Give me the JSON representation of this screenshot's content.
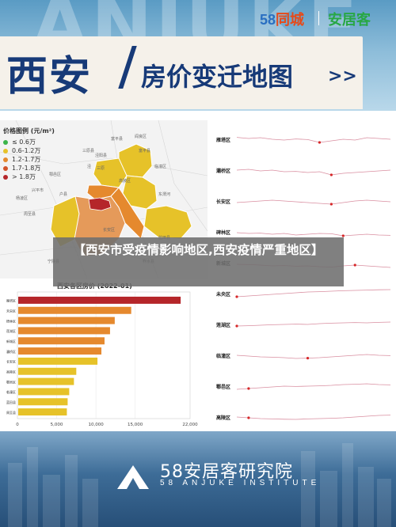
{
  "banner": {
    "background_letters": "ANJUKE",
    "logo_58_num": "58",
    "logo_58_name": "同城",
    "logo_anjuke": "安居客",
    "title_city": "西安",
    "title_sub": "房价变迁地图",
    "arrows": ">>"
  },
  "legend": {
    "title": "价格图例 (元/m²)",
    "items": [
      {
        "label": "≤ 0.6万",
        "color": "#3bb44a"
      },
      {
        "label": "0.6-1.2万",
        "color": "#e6c229"
      },
      {
        "label": "1.2-1.7万",
        "color": "#e5892e"
      },
      {
        "label": "1.7-1.8万",
        "color": "#d2542a"
      },
      {
        "label": "> 1.8万",
        "color": "#b5262a"
      }
    ]
  },
  "map_labels": [
    "富平县",
    "三原县",
    "泾阳县",
    "高陵区",
    "临潼区",
    "阎良区",
    "长安区",
    "鄠邑区",
    "周至县",
    "蓝田县",
    "兴平市",
    "户县",
    "杨凌区",
    "柞水县",
    "宁陕县",
    "东渭河",
    "三原",
    "泾",
    "富平县"
  ],
  "overlay_title": "【西安市受疫情影响地区,西安疫情严重地区】",
  "bar_chart": {
    "title": "西安各区房价 (2022-01)",
    "categories": [
      "雁塔区",
      "未央区",
      "碑林区",
      "莲湖区",
      "新城区",
      "灞桥区",
      "长安区",
      "高陵区",
      "鄠邑区",
      "临潼区",
      "蓝田县",
      "周至县"
    ],
    "values": [
      20800,
      14500,
      12400,
      11800,
      11100,
      10700,
      10200,
      7500,
      7200,
      6600,
      6400,
      6300
    ],
    "xlim": [
      0,
      22000
    ],
    "ticks": [
      "0",
      "5,000",
      "10,000",
      "15,000",
      "22,000"
    ],
    "colors": [
      "#b5262a",
      "#e5892e",
      "#e5892e",
      "#e5892e",
      "#e5892e",
      "#e5892e",
      "#e6c229",
      "#e6c229",
      "#e6c229",
      "#e6c229",
      "#e6c229",
      "#e6c229"
    ]
  },
  "trends": {
    "series": [
      {
        "name": "雁塔区",
        "values": [
          0.62,
          0.55,
          0.6,
          0.5,
          0.45,
          0.52,
          0.48,
          0.3,
          0.4,
          0.5,
          0.45,
          0.6,
          0.55,
          0.5
        ],
        "peak": 7
      },
      {
        "name": "灞桥区",
        "values": [
          0.5,
          0.55,
          0.45,
          0.5,
          0.4,
          0.42,
          0.35,
          0.4,
          0.2,
          0.3,
          0.35,
          0.4,
          0.45,
          0.5
        ],
        "peak": 8
      },
      {
        "name": "长安区",
        "values": [
          0.4,
          0.45,
          0.5,
          0.55,
          0.5,
          0.45,
          0.4,
          0.35,
          0.3,
          0.4,
          0.5,
          0.55,
          0.5,
          0.45
        ],
        "peak": 8
      },
      {
        "name": "碑林区",
        "values": [
          0.45,
          0.4,
          0.42,
          0.35,
          0.4,
          0.3,
          0.35,
          0.4,
          0.38,
          0.25,
          0.3,
          0.35,
          0.3,
          0.28
        ],
        "peak": 9
      },
      {
        "name": "新城区",
        "values": [
          0.4,
          0.38,
          0.35,
          0.3,
          0.32,
          0.28,
          0.3,
          0.25,
          0.22,
          0.3,
          0.35,
          0.3,
          0.25,
          0.2
        ],
        "peak": 10
      },
      {
        "name": "未央区",
        "values": [
          0.3,
          0.35,
          0.4,
          0.45,
          0.5,
          0.55,
          0.6,
          0.62,
          0.65,
          0.68,
          0.7,
          0.72,
          0.74,
          0.75
        ],
        "peak": 0
      },
      {
        "name": "莲湖区",
        "values": [
          0.4,
          0.42,
          0.45,
          0.48,
          0.5,
          0.52,
          0.5,
          0.55,
          0.58,
          0.6,
          0.62,
          0.6,
          0.63,
          0.65
        ],
        "peak": 0
      },
      {
        "name": "临潼区",
        "values": [
          0.5,
          0.45,
          0.4,
          0.38,
          0.35,
          0.3,
          0.32,
          0.35,
          0.4,
          0.45,
          0.5,
          0.55,
          0.5,
          0.48
        ],
        "peak": 6
      },
      {
        "name": "鄠邑区",
        "values": [
          0.3,
          0.35,
          0.4,
          0.45,
          0.5,
          0.48,
          0.5,
          0.52,
          0.55,
          0.6,
          0.62,
          0.65,
          0.6,
          0.58
        ],
        "peak": 1
      },
      {
        "name": "高陵区",
        "values": [
          0.5,
          0.45,
          0.4,
          0.38,
          0.36,
          0.35,
          0.38,
          0.4,
          0.42,
          0.45,
          0.5,
          0.55,
          0.6,
          0.62
        ],
        "peak": 1
      }
    ],
    "line_color": "#d98ea0",
    "dot_color": "#d62728"
  },
  "footer": {
    "name": "58安居客研究院",
    "sub": "58 ANJUKE INSTITUTE"
  }
}
